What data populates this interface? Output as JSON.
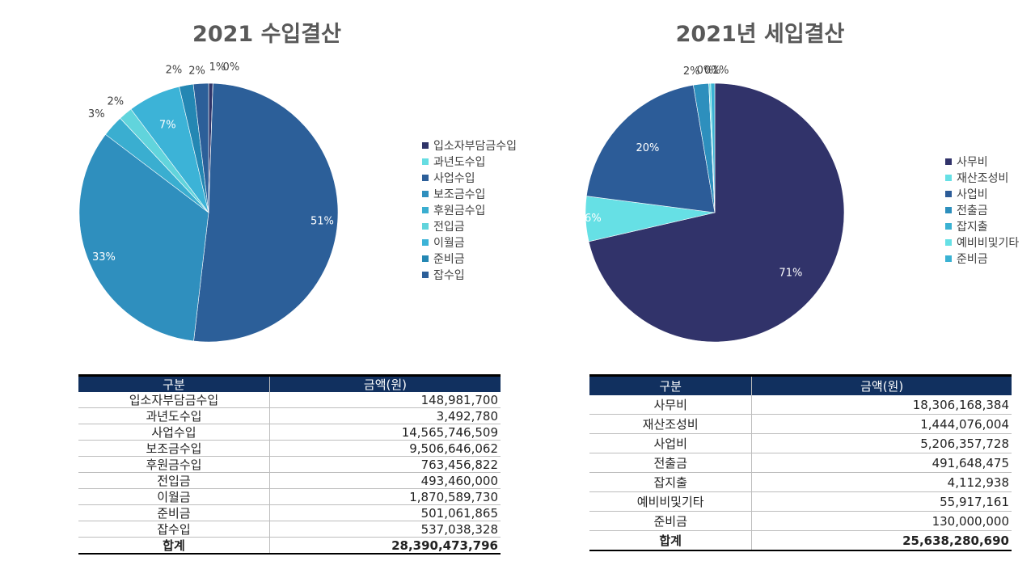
{
  "chart_data": [
    {
      "type": "pie",
      "title": "2021 수입결산",
      "categories": [
        "입소자부담금수입",
        "과년도수입",
        "사업수입",
        "보조금수입",
        "후원금수입",
        "전입금",
        "이월금",
        "준비금",
        "잡수입"
      ],
      "values": [
        148981700,
        3492780,
        14565746509,
        9506646062,
        763456822,
        493460000,
        1870589730,
        501061865,
        537038328
      ],
      "data_labels": [
        "1%",
        "0%",
        "51%",
        "33%",
        "3%",
        "2%",
        "7%",
        "2%",
        "2%"
      ],
      "colors": [
        "#2f3468",
        "#66dde2",
        "#2c5f99",
        "#2f8fbe",
        "#3aaed0",
        "#61d4dc",
        "#3cb3d7",
        "#2487b3",
        "#2c5f99"
      ],
      "legend_position": "right"
    },
    {
      "type": "pie",
      "title": "2021년 세입결산",
      "categories": [
        "사무비",
        "재산조성비",
        "사업비",
        "전출금",
        "잡지출",
        "예비비및기타",
        "준비금"
      ],
      "values": [
        18306168384,
        1444076004,
        5206357728,
        491648475,
        4112938,
        55917161,
        130000000
      ],
      "data_labels": [
        "71%",
        "6%",
        "20%",
        "2%",
        "0%",
        "0%",
        "1%"
      ],
      "colors": [
        "#31336a",
        "#66e0e5",
        "#2c5c98",
        "#2d8fbd",
        "#3ab2d3",
        "#66e0e5",
        "#3ab2d3"
      ],
      "legend_position": "right"
    }
  ],
  "legend1": [
    "입소자부담금수입",
    "과년도수입",
    "사업수입",
    "보조금수입",
    "후원금수입",
    "전입금",
    "이월금",
    "준비금",
    "잡수입"
  ],
  "legend2": [
    "사무비",
    "재산조성비",
    "사업비",
    "전출금",
    "잡지출",
    "예비비및기타",
    "준비금"
  ],
  "table1": {
    "header": [
      "구분",
      "금액(원)"
    ],
    "rows": [
      [
        "입소자부담금수입",
        "148,981,700"
      ],
      [
        "과년도수입",
        "3,492,780"
      ],
      [
        "사업수입",
        "14,565,746,509"
      ],
      [
        "보조금수입",
        "9,506,646,062"
      ],
      [
        "후원금수입",
        "763,456,822"
      ],
      [
        "전입금",
        "493,460,000"
      ],
      [
        "이월금",
        "1,870,589,730"
      ],
      [
        "준비금",
        "501,061,865"
      ],
      [
        "잡수입",
        "537,038,328"
      ]
    ],
    "total": [
      "합계",
      "28,390,473,796"
    ]
  },
  "table2": {
    "header": [
      "구분",
      "금액(원)"
    ],
    "rows": [
      [
        "사무비",
        "18,306,168,384"
      ],
      [
        "재산조성비",
        "1,444,076,004"
      ],
      [
        "사업비",
        "5,206,357,728"
      ],
      [
        "전출금",
        "491,648,475"
      ],
      [
        "잡지출",
        "4,112,938"
      ],
      [
        "예비비및기타",
        "55,917,161"
      ],
      [
        "준비금",
        "130,000,000"
      ]
    ],
    "total": [
      "합계",
      "25,638,280,690"
    ]
  }
}
